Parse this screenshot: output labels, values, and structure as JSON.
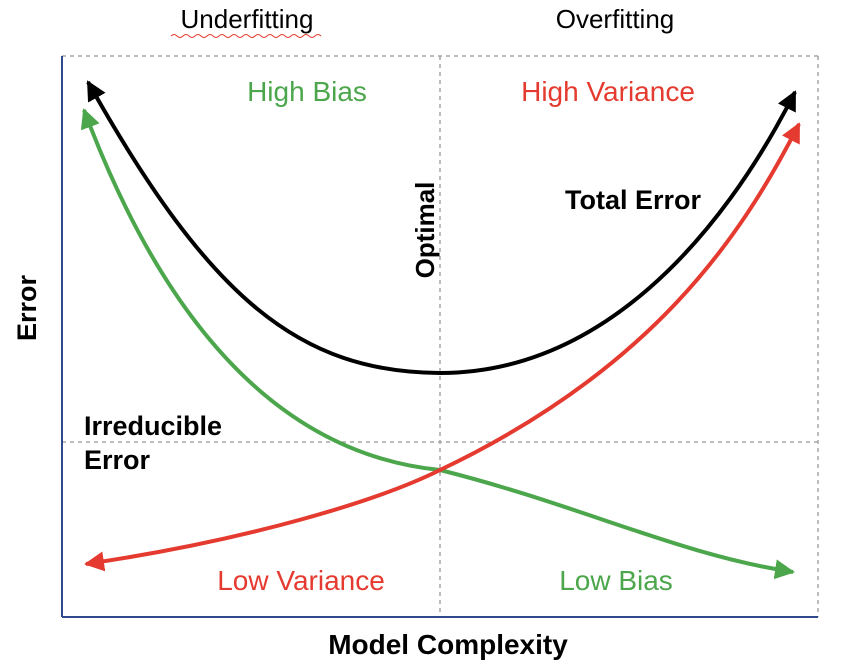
{
  "top_labels": {
    "left": "Underfitting",
    "right": "Overfitting"
  },
  "quadrants": {
    "top_left": "High Bias",
    "top_right": "High Variance",
    "bottom_left": "Low Variance",
    "bottom_right": "Low Bias"
  },
  "labels": {
    "optimal": "Optimal",
    "total_error": "Total Error",
    "irreducible_line1": "Irreducible",
    "irreducible_line2": "Error"
  },
  "axes": {
    "y_label": "Error",
    "x_label": "Model Complexity"
  },
  "curves": [
    {
      "id": "total-error-curve",
      "color": "#000000"
    },
    {
      "id": "bias-curve",
      "color": "#4ca64c"
    },
    {
      "id": "variance-curve",
      "color": "#e53a2f"
    }
  ],
  "colors": {
    "green": "#4ca64c",
    "red": "#e53a2f",
    "black": "#000000",
    "axis": "#2f4a8a",
    "grid": "#a6a6a6",
    "spellcheck": "#e53a2f"
  }
}
